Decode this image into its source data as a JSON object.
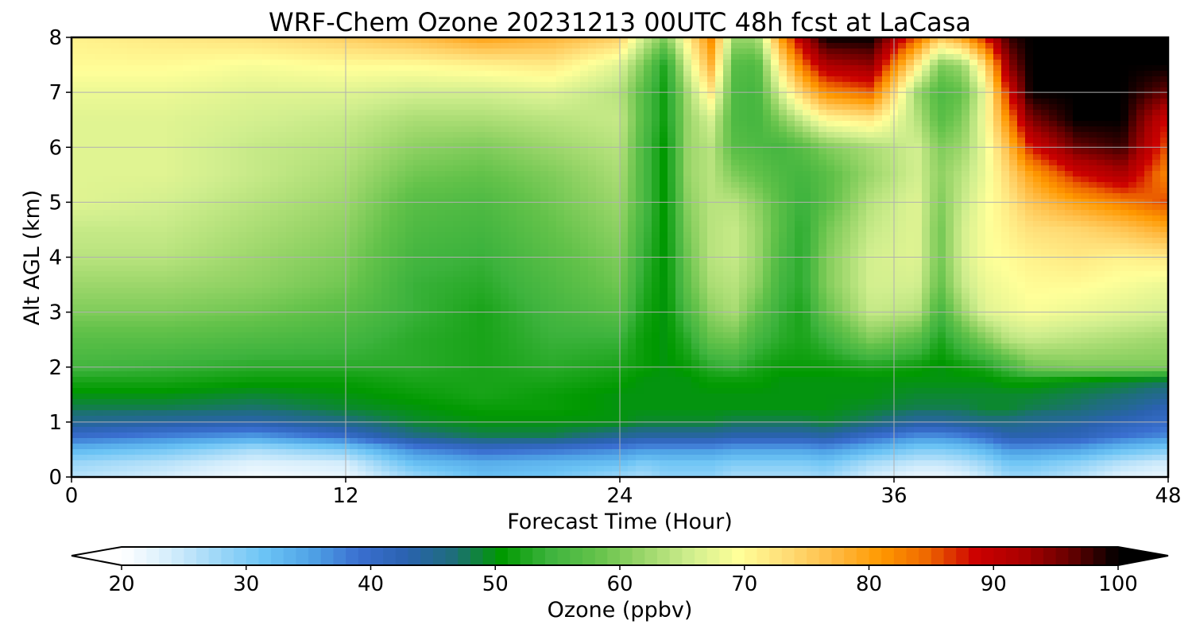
{
  "chart_data": {
    "type": "heatmap",
    "title": "WRF-Chem Ozone  20231213 00UTC 48h fcst at LaCasa",
    "xlabel": "Forecast Time (Hour)",
    "ylabel": "Alt AGL (km)",
    "xlim": [
      0,
      48
    ],
    "ylim": [
      0,
      8
    ],
    "x_ticks": [
      "0",
      "12",
      "24",
      "36",
      "48"
    ],
    "y_ticks": [
      "0",
      "1",
      "2",
      "3",
      "4",
      "5",
      "6",
      "7",
      "8"
    ],
    "grid": true,
    "colorbar": {
      "label": "Ozone  (ppbv)",
      "range": [
        20,
        100
      ],
      "ticks": [
        "20",
        "30",
        "40",
        "50",
        "60",
        "70",
        "80",
        "90",
        "100"
      ],
      "extend": "both",
      "colors": [
        "#ffffff",
        "#d6eefc",
        "#9fd8f8",
        "#6cc4f5",
        "#4fa3e6",
        "#3a6fd0",
        "#2a62b0",
        "#1e6e7a",
        "#009900",
        "#3db33d",
        "#63c24a",
        "#9bd66a",
        "#d0ee8e",
        "#ffff99",
        "#ffdd77",
        "#ffbb44",
        "#ff9900",
        "#ee6600",
        "#cc0000",
        "#aa0000",
        "#660000",
        "#000000"
      ]
    },
    "series": [
      {
        "name": "",
        "x": [
          0,
          4,
          8,
          12,
          15,
          18,
          21,
          24,
          25,
          26,
          27,
          28,
          29,
          30,
          31,
          32,
          33,
          35,
          37,
          38,
          39,
          40,
          41,
          42,
          44,
          46,
          48
        ]
      }
    ],
    "y_levels": [
      0,
      0.25,
      0.5,
      0.75,
      1,
      1.25,
      1.5,
      1.75,
      2,
      2.5,
      3,
      3.5,
      4,
      4.5,
      5,
      5.5,
      6,
      6.5,
      7,
      7.5,
      8
    ],
    "values_ppbv": [
      [
        26,
        24,
        21,
        22,
        28,
        32,
        31,
        28,
        27,
        29,
        29,
        29,
        27,
        27,
        27,
        27,
        28,
        24,
        22,
        22,
        23,
        25,
        28,
        28,
        26,
        23,
        22
      ],
      [
        28,
        26,
        23,
        24,
        32,
        34,
        33,
        32,
        30,
        31,
        31,
        31,
        30,
        30,
        30,
        30,
        31,
        27,
        25,
        25,
        26,
        28,
        31,
        31,
        29,
        26,
        24
      ],
      [
        33,
        31,
        27,
        30,
        37,
        40,
        39,
        37,
        36,
        36,
        36,
        36,
        35,
        35,
        35,
        35,
        36,
        33,
        30,
        30,
        31,
        33,
        36,
        36,
        35,
        32,
        30
      ],
      [
        40,
        38,
        36,
        40,
        46,
        48,
        48,
        45,
        44,
        44,
        44,
        44,
        43,
        43,
        43,
        43,
        44,
        40,
        37,
        37,
        38,
        40,
        43,
        43,
        42,
        39,
        37
      ],
      [
        45,
        44,
        43,
        46,
        49,
        50,
        50,
        50,
        49,
        49,
        49,
        49,
        48,
        48,
        48,
        48,
        49,
        47,
        44,
        44,
        45,
        46,
        46,
        45,
        44,
        42,
        40
      ],
      [
        48,
        48,
        47,
        49,
        50,
        51,
        51,
        50,
        50,
        50,
        50,
        50,
        50,
        50,
        50,
        50,
        50,
        49,
        48,
        48,
        48,
        49,
        49,
        48,
        47,
        45,
        42
      ],
      [
        50,
        50,
        49,
        50,
        51,
        52,
        51,
        50,
        50,
        50,
        50,
        50,
        50,
        50,
        50,
        50,
        50,
        50,
        49,
        49,
        49,
        49,
        49,
        49,
        48,
        47,
        45
      ],
      [
        52,
        52,
        51,
        51,
        52,
        52,
        52,
        51,
        50,
        50,
        50,
        51,
        51,
        51,
        50,
        50,
        50,
        50,
        50,
        50,
        50,
        50,
        51,
        51,
        50,
        49,
        48
      ],
      [
        55,
        54,
        53,
        53,
        53,
        52,
        53,
        52,
        51,
        50,
        51,
        53,
        54,
        52,
        51,
        51,
        51,
        52,
        51,
        50,
        51,
        52,
        55,
        59,
        60,
        60,
        60
      ],
      [
        57,
        57,
        56,
        55,
        53,
        52,
        54,
        54,
        51,
        50,
        53,
        58,
        59,
        55,
        53,
        52,
        54,
        60,
        57,
        52,
        56,
        60,
        64,
        65,
        64,
        63,
        62
      ],
      [
        60,
        60,
        59,
        57,
        54,
        52,
        55,
        57,
        52,
        50,
        56,
        61,
        63,
        58,
        54,
        52,
        58,
        65,
        64,
        55,
        62,
        67,
        68,
        69,
        68,
        67,
        66
      ],
      [
        62,
        62,
        61,
        59,
        54,
        53,
        56,
        59,
        53,
        50,
        58,
        63,
        64,
        61,
        55,
        53,
        60,
        66,
        66,
        58,
        65,
        68,
        69,
        70,
        70,
        69,
        68
      ],
      [
        64,
        64,
        62,
        60,
        55,
        54,
        57,
        60,
        54,
        50,
        59,
        64,
        65,
        62,
        56,
        53,
        60,
        66,
        67,
        59,
        66,
        69,
        70,
        71,
        72,
        71,
        72
      ],
      [
        65,
        65,
        63,
        61,
        56,
        55,
        58,
        61,
        55,
        50,
        60,
        64,
        65,
        62,
        57,
        53,
        59,
        65,
        67,
        59,
        66,
        69,
        71,
        73,
        74,
        76,
        79
      ],
      [
        67,
        66,
        64,
        62,
        57,
        56,
        59,
        62,
        56,
        50,
        61,
        64,
        64,
        61,
        57,
        54,
        57,
        64,
        67,
        60,
        65,
        69,
        72,
        76,
        80,
        83,
        86
      ],
      [
        67,
        67,
        65,
        63,
        59,
        58,
        60,
        63,
        56,
        50,
        62,
        64,
        60,
        58,
        56,
        55,
        57,
        62,
        66,
        61,
        64,
        68,
        74,
        80,
        88,
        92,
        82
      ],
      [
        67,
        67,
        65,
        64,
        61,
        60,
        62,
        64,
        56,
        50,
        62,
        64,
        57,
        56,
        55,
        57,
        60,
        63,
        66,
        60,
        62,
        68,
        77,
        88,
        96,
        98,
        85
      ],
      [
        67,
        67,
        66,
        65,
        63,
        63,
        64,
        65,
        57,
        51,
        62,
        66,
        56,
        55,
        60,
        65,
        70,
        72,
        64,
        57,
        60,
        69,
        82,
        95,
        100,
        100,
        88
      ],
      [
        68,
        68,
        67,
        67,
        66,
        66,
        67,
        64,
        57,
        51,
        63,
        72,
        56,
        55,
        66,
        75,
        82,
        85,
        62,
        56,
        58,
        68,
        88,
        100,
        100,
        100,
        96
      ],
      [
        70,
        70,
        69,
        70,
        70,
        71,
        72,
        67,
        60,
        52,
        67,
        78,
        57,
        56,
        72,
        84,
        92,
        94,
        72,
        60,
        62,
        74,
        94,
        100,
        100,
        100,
        100
      ],
      [
        71,
        72,
        73,
        75,
        77,
        80,
        78,
        75,
        66,
        60,
        72,
        82,
        62,
        62,
        80,
        92,
        100,
        100,
        85,
        76,
        80,
        88,
        98,
        100,
        100,
        100,
        100
      ]
    ]
  }
}
